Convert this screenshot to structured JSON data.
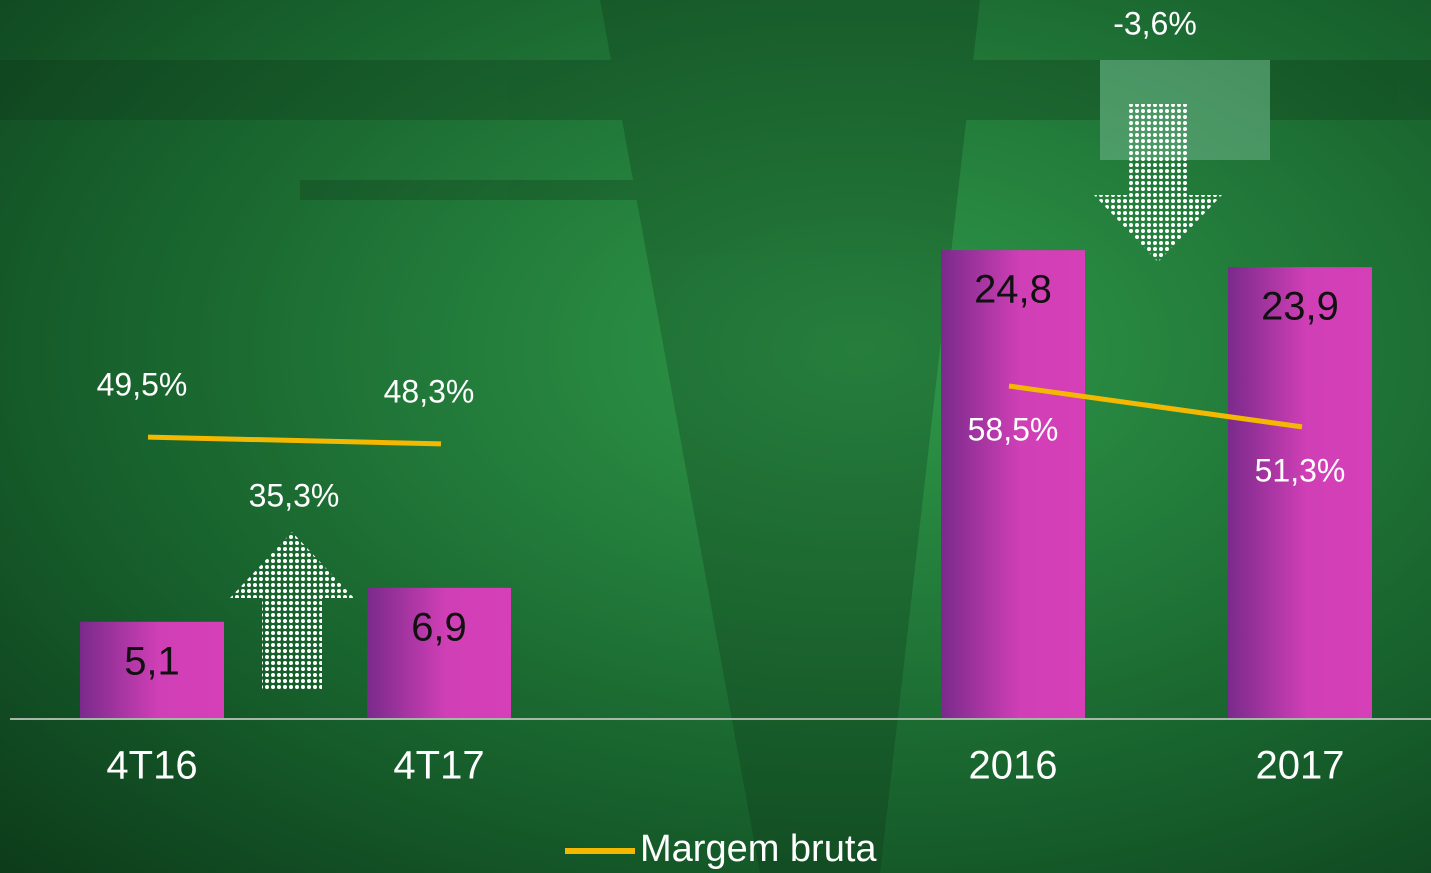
{
  "chart_data": {
    "type": "bar",
    "categories": [
      "4T16",
      "4T17",
      "2016",
      "2017"
    ],
    "values": [
      5.1,
      6.9,
      24.8,
      23.9
    ],
    "value_labels": [
      "5,1",
      "6,9",
      "24,8",
      "23,9"
    ],
    "color": "#d63fb8",
    "ylim": [
      0,
      37
    ],
    "series": [
      {
        "name": "Margem bruta",
        "color": "#f5b800",
        "axis": "y2",
        "values": [
          49.5,
          48.3,
          58.5,
          51.3
        ],
        "value_labels": [
          "49,5%",
          "48,3%",
          "58,5%",
          "51,3%"
        ]
      }
    ],
    "y2lim": [
      0,
      123
    ],
    "annotations": [
      "35,3%",
      "-3,6%"
    ]
  }
}
